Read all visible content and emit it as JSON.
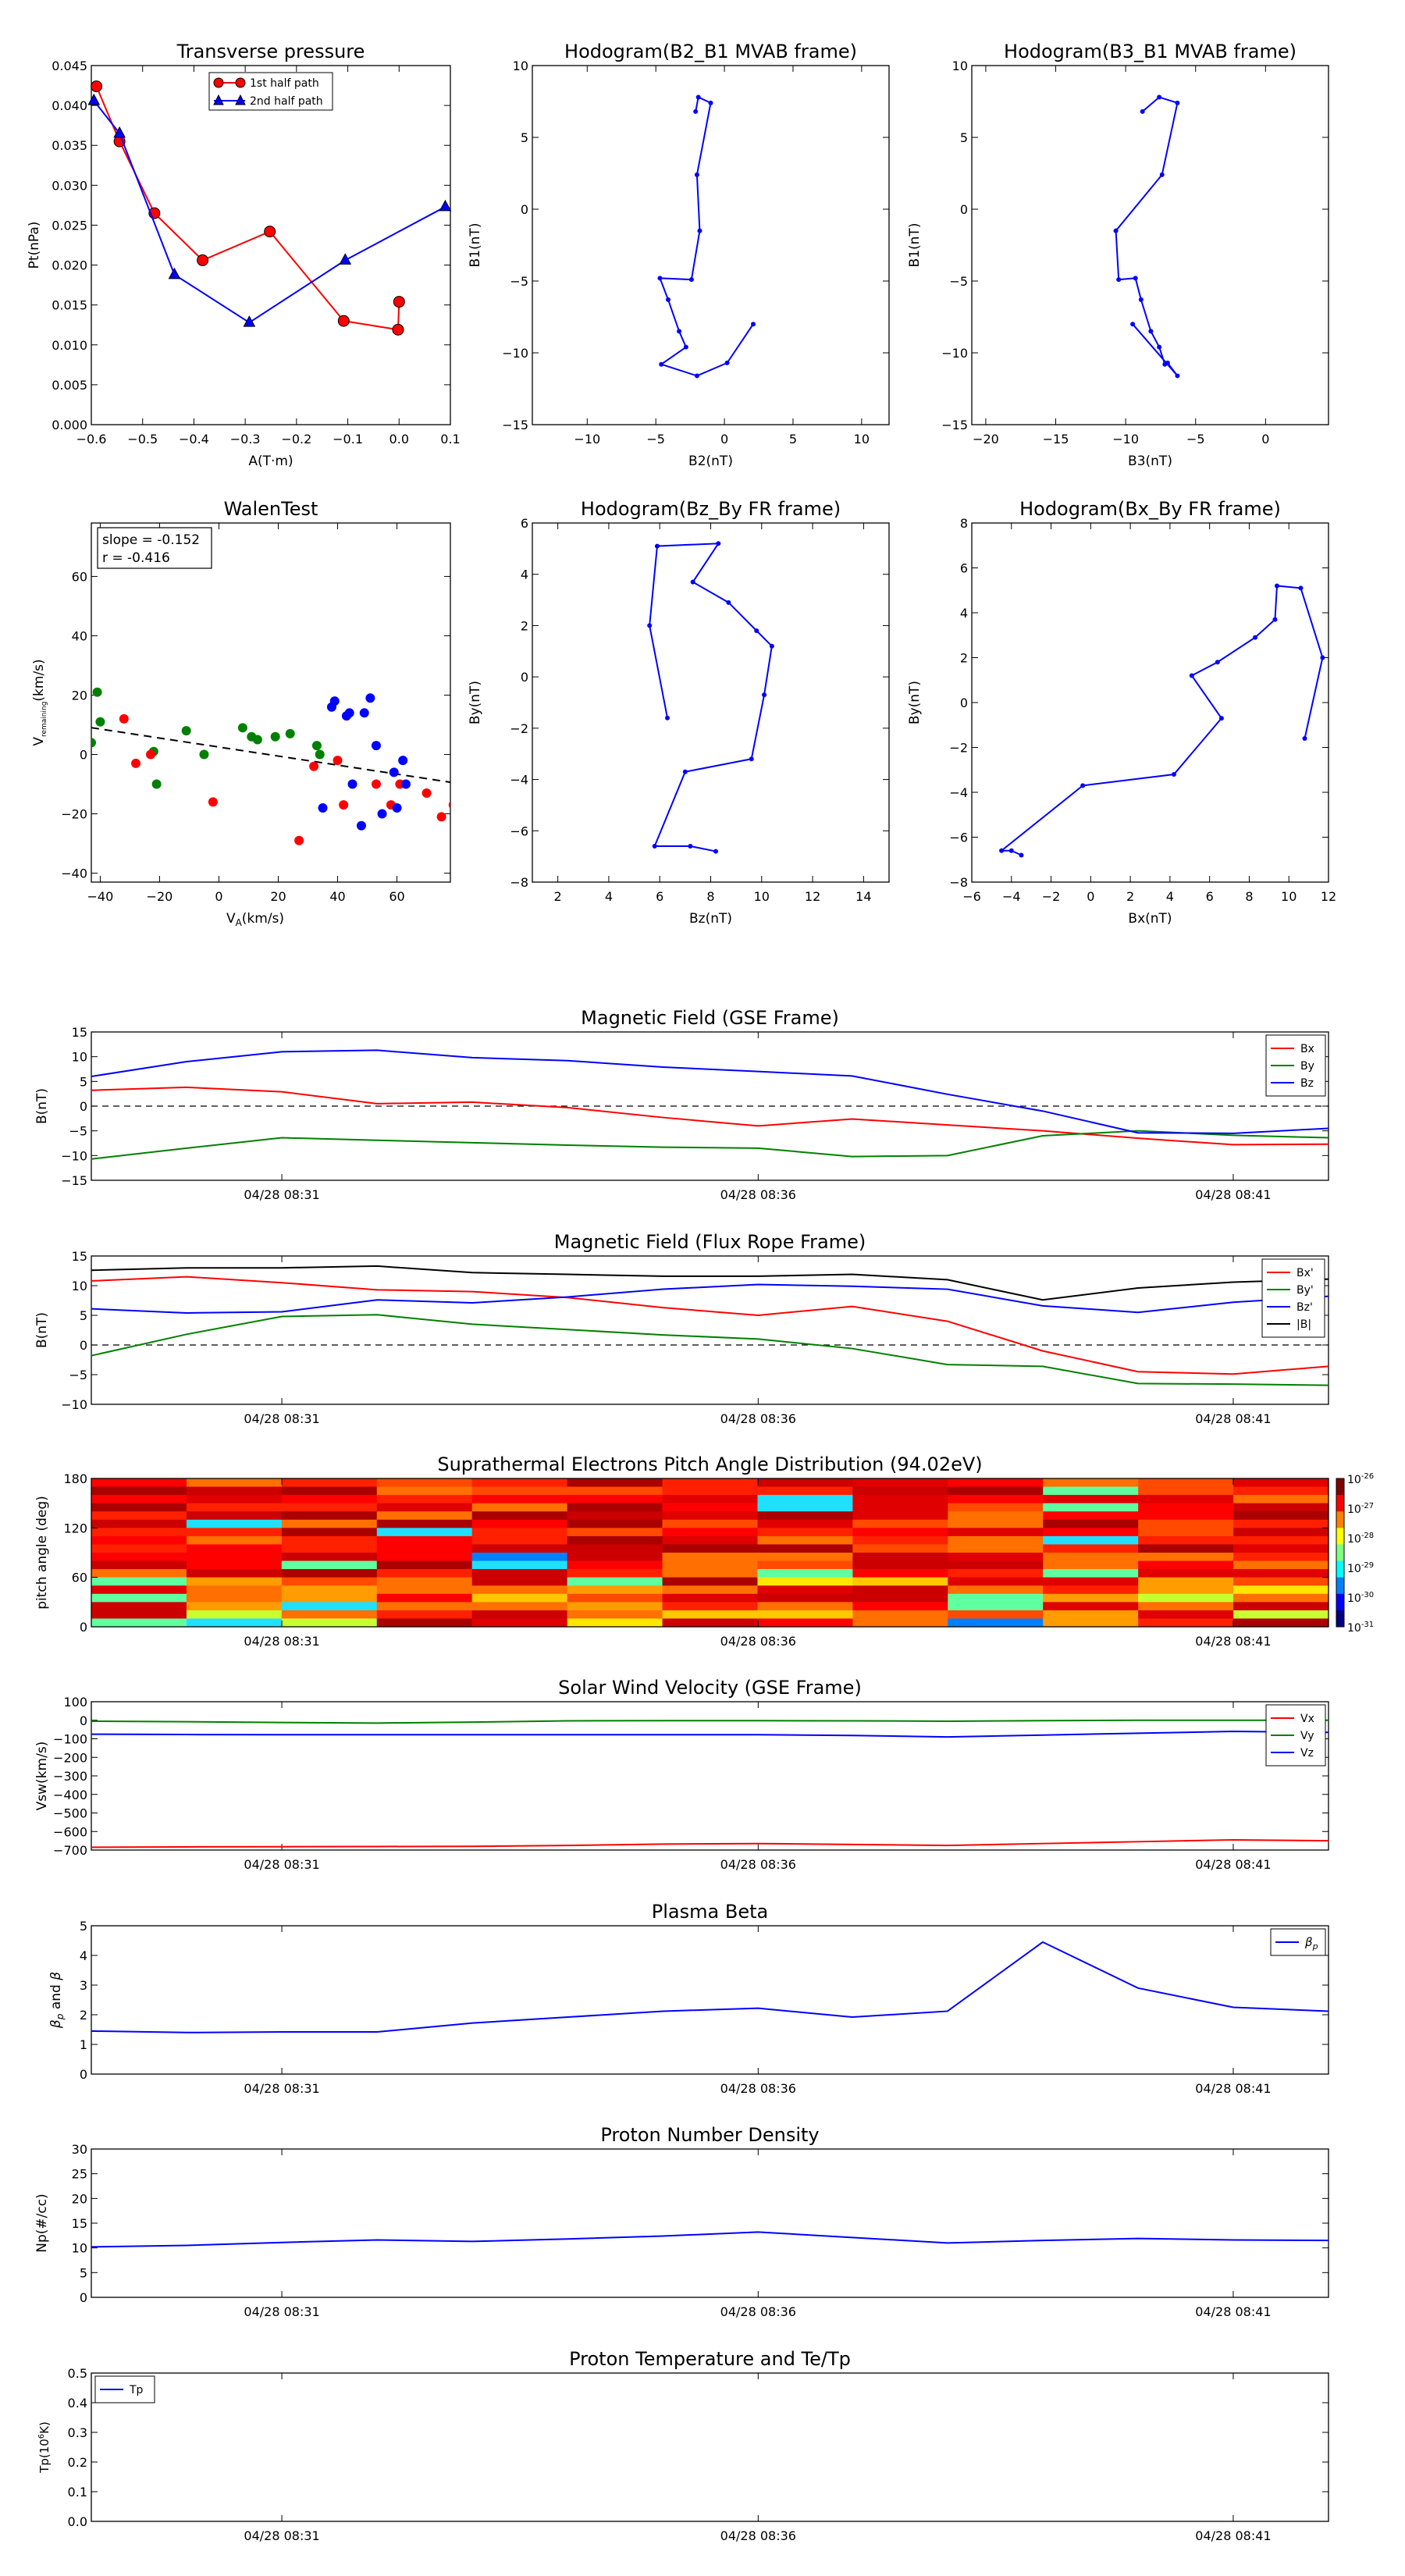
{
  "colors": {
    "red": "#ff0000",
    "green": "#008000",
    "blue": "#0000ff",
    "black": "#000000"
  },
  "panels": {
    "transverse_pressure": {
      "title": "Transverse pressure",
      "xlabel": "A(T·m)",
      "ylabel": "Pt(nPa)",
      "xlim": [
        -0.6,
        0.1
      ],
      "ylim": [
        0,
        0.045
      ],
      "xticks": [
        -0.6,
        -0.5,
        -0.4,
        -0.3,
        -0.2,
        -0.1,
        0.0,
        0.1
      ],
      "xtick_labels": [
        "−0.6",
        "−0.5",
        "−0.4",
        "−0.3",
        "−0.2",
        "−0.1",
        "0.0",
        "0.1"
      ],
      "yticks": [
        0,
        0.005,
        0.01,
        0.015,
        0.02,
        0.025,
        0.03,
        0.035,
        0.04,
        0.045
      ],
      "ytick_labels": [
        "0.000",
        "0.005",
        "0.010",
        "0.015",
        "0.020",
        "0.025",
        "0.030",
        "0.035",
        "0.040",
        "0.045"
      ],
      "series": [
        {
          "name": "1st half path",
          "color": "#ff0000",
          "marker": "circle",
          "x": [
            -0.59,
            -0.545,
            -0.477,
            -0.383,
            -0.252,
            -0.108,
            -0.002,
            0.0
          ],
          "y": [
            0.0424,
            0.0355,
            0.0265,
            0.0206,
            0.0242,
            0.013,
            0.0119,
            0.0154
          ]
        },
        {
          "name": "2nd half path",
          "color": "#0000ff",
          "marker": "triangle",
          "x": [
            -0.595,
            -0.545,
            -0.438,
            -0.292,
            -0.105,
            0.09
          ],
          "y": [
            0.0406,
            0.0365,
            0.0188,
            0.0128,
            0.0206,
            0.0273
          ]
        }
      ]
    },
    "hodogram_b2_b1": {
      "title": "Hodogram(B2_B1 MVAB frame)",
      "xlabel": "B2(nT)",
      "ylabel": "B1(nT)",
      "xlim": [
        -14,
        12
      ],
      "ylim": [
        -15,
        10
      ],
      "xticks": [
        -10,
        -5,
        0,
        5,
        10
      ],
      "xtick_labels": [
        "−10",
        "−5",
        "0",
        "5",
        "10"
      ],
      "yticks": [
        -15,
        -10,
        -5,
        0,
        5,
        10
      ],
      "ytick_labels": [
        "−15",
        "−10",
        "−5",
        "0",
        "5",
        "10"
      ],
      "color": "#0000ff",
      "x": [
        -2.1,
        -1.9,
        -1.0,
        -2.0,
        -1.8,
        -2.4,
        -4.7,
        -4.1,
        -3.3,
        -2.8,
        -4.6,
        -2.0,
        0.2,
        2.1
      ],
      "y": [
        6.8,
        7.8,
        7.4,
        2.4,
        -1.5,
        -4.9,
        -4.8,
        -6.3,
        -8.5,
        -9.6,
        -10.8,
        -11.6,
        -10.7,
        -8.0
      ]
    },
    "hodogram_b3_b1": {
      "title": "Hodogram(B3_B1 MVAB frame)",
      "xlabel": "B3(nT)",
      "ylabel": "B1(nT)",
      "xlim": [
        -21,
        4.5
      ],
      "ylim": [
        -15,
        10
      ],
      "xticks": [
        -20,
        -15,
        -10,
        -5,
        0
      ],
      "xtick_labels": [
        "−20",
        "−15",
        "−10",
        "−5",
        "0"
      ],
      "yticks": [
        -15,
        -10,
        -5,
        0,
        5,
        10
      ],
      "ytick_labels": [
        "−15",
        "−10",
        "−5",
        "0",
        "5",
        "10"
      ],
      "color": "#0000ff",
      "x": [
        -8.8,
        -7.6,
        -6.3,
        -7.4,
        -10.7,
        -10.5,
        -9.3,
        -8.9,
        -8.2,
        -7.6,
        -7.2,
        -7.0,
        -6.3,
        -9.5
      ],
      "y": [
        6.8,
        7.8,
        7.4,
        2.4,
        -1.5,
        -4.9,
        -4.8,
        -6.3,
        -8.5,
        -9.6,
        -10.8,
        -10.7,
        -11.6,
        -8.0
      ]
    },
    "walen_test": {
      "title": "WalenTest",
      "xlabel": "V_A(km/s)",
      "ylabel": "V_remaining(km/s)",
      "xlabel_main": "V",
      "xlabel_sub": "A",
      "xlabel_unit": "(km/s)",
      "ylabel_main": "V",
      "ylabel_sub": "remaining",
      "ylabel_unit": "(km/s)",
      "annotation": [
        "slope = -0.152",
        "r = -0.416"
      ],
      "xlim": [
        -43,
        78
      ],
      "ylim": [
        -43,
        78
      ],
      "xticks": [
        -40,
        -20,
        0,
        20,
        40,
        60
      ],
      "xtick_labels": [
        "−40",
        "−20",
        "0",
        "20",
        "40",
        "60"
      ],
      "yticks": [
        -40,
        -20,
        0,
        20,
        40,
        60
      ],
      "ytick_labels": [
        "−40",
        "−20",
        "0",
        "20",
        "40",
        "60"
      ],
      "fit_line": {
        "slope": -0.152,
        "intercept": 2.5
      },
      "points": [
        {
          "color": "#008000",
          "x": [
            -41,
            -40,
            -43,
            -22,
            -21,
            -11,
            -5,
            8,
            11,
            13,
            19,
            24,
            33,
            34
          ],
          "y": [
            21,
            11,
            4,
            1,
            -10,
            8,
            0,
            9,
            6,
            5,
            6,
            7,
            3,
            0
          ]
        },
        {
          "color": "#ff0000",
          "x": [
            -32,
            -28,
            -23,
            -2,
            27,
            32,
            40,
            42,
            53,
            58,
            61,
            70,
            75,
            79
          ],
          "y": [
            12,
            -3,
            0,
            -16,
            -29,
            -4,
            -2,
            -17,
            -10,
            -17,
            -10,
            -13,
            -21,
            -17
          ]
        },
        {
          "color": "#0000ff",
          "x": [
            35,
            38,
            39,
            43,
            44,
            45,
            48,
            49,
            51,
            53,
            55,
            59,
            60,
            62,
            63
          ],
          "y": [
            -18,
            16,
            18,
            13,
            14,
            -10,
            -24,
            14,
            19,
            3,
            -20,
            -6,
            -18,
            -2,
            -10
          ]
        }
      ]
    },
    "hodogram_bz_by": {
      "title": "Hodogram(Bz_By FR frame)",
      "xlabel": "Bz(nT)",
      "ylabel": "By(nT)",
      "xlim": [
        1,
        15
      ],
      "ylim": [
        -8,
        6
      ],
      "xticks": [
        2,
        4,
        6,
        8,
        10,
        12,
        14
      ],
      "xtick_labels": [
        "2",
        "4",
        "6",
        "8",
        "10",
        "12",
        "14"
      ],
      "yticks": [
        -8,
        -6,
        -4,
        -2,
        0,
        2,
        4,
        6
      ],
      "ytick_labels": [
        "−8",
        "−6",
        "−4",
        "−2",
        "0",
        "2",
        "4",
        "6"
      ],
      "color": "#0000ff",
      "x": [
        6.3,
        5.6,
        5.9,
        8.3,
        7.3,
        8.7,
        9.8,
        10.4,
        10.1,
        9.6,
        7.0,
        5.8,
        7.2,
        8.2
      ],
      "y": [
        -1.6,
        2.0,
        5.1,
        5.2,
        3.7,
        2.9,
        1.8,
        1.2,
        -0.7,
        -3.2,
        -3.7,
        -6.6,
        -6.6,
        -6.8
      ]
    },
    "hodogram_bx_by": {
      "title": "Hodogram(Bx_By FR frame)",
      "xlabel": "Bx(nT)",
      "ylabel": "By(nT)",
      "xlim": [
        -6,
        12
      ],
      "ylim": [
        -8,
        8
      ],
      "xticks": [
        -6,
        -4,
        -2,
        0,
        2,
        4,
        6,
        8,
        10,
        12
      ],
      "xtick_labels": [
        "−6",
        "−4",
        "−2",
        "0",
        "2",
        "4",
        "6",
        "8",
        "10",
        "12"
      ],
      "yticks": [
        -8,
        -6,
        -4,
        -2,
        0,
        2,
        4,
        6,
        8
      ],
      "ytick_labels": [
        "−8",
        "−6",
        "−4",
        "−2",
        "0",
        "2",
        "4",
        "6",
        "8"
      ],
      "color": "#0000ff",
      "x": [
        10.8,
        11.7,
        10.6,
        9.4,
        9.3,
        8.3,
        6.4,
        5.1,
        6.6,
        4.2,
        -0.4,
        -4.5,
        -4.0,
        -3.5
      ],
      "y": [
        -1.6,
        2.0,
        5.1,
        5.2,
        3.7,
        2.9,
        1.8,
        1.2,
        -0.7,
        -3.2,
        -3.7,
        -6.6,
        -6.6,
        -6.8
      ]
    }
  },
  "time_series": {
    "time_tick_labels": [
      "04/28 08:31",
      "04/28 08:36",
      "04/28 08:41"
    ],
    "time_tick_fracs": [
      0.154,
      0.539,
      0.923
    ],
    "x_fracs": [
      0,
      0.077,
      0.154,
      0.231,
      0.308,
      0.385,
      0.462,
      0.539,
      0.615,
      0.692,
      0.769,
      0.846,
      0.923,
      1.0
    ],
    "magnetic_gse": {
      "title": "Magnetic Field (GSE Frame)",
      "ylabel": "B(nT)",
      "ylim": [
        -15,
        15
      ],
      "yticks": [
        -15,
        -10,
        -5,
        0,
        5,
        10,
        15
      ],
      "ytick_labels": [
        "−15",
        "−10",
        "−5",
        "0",
        "5",
        "10",
        "15"
      ],
      "zero_line": true,
      "series": [
        {
          "name": "Bx",
          "color": "#ff0000",
          "values": [
            3.2,
            3.8,
            2.9,
            0.5,
            0.8,
            -0.3,
            -2.3,
            -4.0,
            -2.6,
            -3.8,
            -5.0,
            -6.5,
            -7.8,
            -7.7
          ]
        },
        {
          "name": "By",
          "color": "#008000",
          "values": [
            -10.7,
            -8.5,
            -6.4,
            -6.9,
            -7.4,
            -7.9,
            -8.3,
            -8.5,
            -10.2,
            -10.0,
            -6.0,
            -5.0,
            -5.9,
            -6.4
          ]
        },
        {
          "name": "Bz",
          "color": "#0000ff",
          "values": [
            6.0,
            9.0,
            11.0,
            11.3,
            9.8,
            9.2,
            7.9,
            7.0,
            6.1,
            2.4,
            -1.0,
            -5.4,
            -5.5,
            -4.5
          ]
        }
      ]
    },
    "magnetic_fr": {
      "title": "Magnetic Field (Flux Rope Frame)",
      "ylabel": "B(nT)",
      "ylim": [
        -10,
        15
      ],
      "yticks": [
        -10,
        -5,
        0,
        5,
        10,
        15
      ],
      "ytick_labels": [
        "−10",
        "−5",
        "0",
        "5",
        "10",
        "15"
      ],
      "zero_line": true,
      "series": [
        {
          "name": "Bx'",
          "color": "#ff0000",
          "values": [
            10.8,
            11.5,
            10.5,
            9.3,
            9.0,
            8.0,
            6.3,
            5.0,
            6.5,
            4.0,
            -1.0,
            -4.5,
            -4.9,
            -3.6
          ]
        },
        {
          "name": "By'",
          "color": "#008000",
          "values": [
            -1.8,
            1.8,
            4.8,
            5.1,
            3.5,
            2.6,
            1.7,
            1.0,
            -0.6,
            -3.3,
            -3.6,
            -6.5,
            -6.6,
            -6.8
          ]
        },
        {
          "name": "Bz'",
          "color": "#0000ff",
          "values": [
            6.1,
            5.4,
            5.6,
            7.6,
            7.1,
            8.1,
            9.4,
            10.2,
            9.9,
            9.4,
            6.6,
            5.5,
            7.2,
            8.2
          ]
        },
        {
          "name": "|B|",
          "color": "#000000",
          "values": [
            12.6,
            13.0,
            13.0,
            13.3,
            12.2,
            11.9,
            11.6,
            11.6,
            11.9,
            11.0,
            7.6,
            9.6,
            10.6,
            11.1
          ]
        }
      ]
    },
    "pitch_angle": {
      "title": "Suprathermal Electrons Pitch Angle Distribution (94.02eV)",
      "ylabel": "pitch angle (deg)",
      "ylim": [
        0,
        180
      ],
      "yticks": [
        0,
        60,
        120,
        180
      ],
      "ytick_labels": [
        "0",
        "60",
        "120",
        "180"
      ],
      "colorbar_labels": [
        "10^-26",
        "10^-27",
        "10^-28",
        "10^-29",
        "10^-30",
        "10^-31"
      ],
      "columns": 13,
      "rows": 18
    },
    "solar_wind": {
      "title": "Solar Wind Velocity (GSE Frame)",
      "ylabel": "Vsw(km/s)",
      "ylim": [
        -700,
        100
      ],
      "yticks": [
        -700,
        -600,
        -500,
        -400,
        -300,
        -200,
        -100,
        0,
        100
      ],
      "ytick_labels": [
        "−700",
        "−600",
        "−500",
        "−400",
        "−300",
        "−200",
        "−100",
        "0",
        "100"
      ],
      "series": [
        {
          "name": "Vx",
          "color": "#ff0000",
          "values": [
            -685,
            -683,
            -682,
            -681,
            -680,
            -675,
            -668,
            -665,
            -670,
            -675,
            -665,
            -655,
            -645,
            -650
          ]
        },
        {
          "name": "Vy",
          "color": "#008000",
          "values": [
            -5,
            -8,
            -12,
            -15,
            -10,
            -3,
            -2,
            -2,
            -3,
            -5,
            -2,
            0,
            0,
            0
          ]
        },
        {
          "name": "Vz",
          "color": "#0000ff",
          "values": [
            -75,
            -77,
            -78,
            -78,
            -78,
            -78,
            -78,
            -78,
            -82,
            -90,
            -80,
            -70,
            -60,
            -65
          ]
        }
      ]
    },
    "plasma_beta": {
      "title": "Plasma Beta",
      "ylabel": "β_p and β",
      "ylim": [
        0,
        5
      ],
      "yticks": [
        0,
        1,
        2,
        3,
        4,
        5
      ],
      "ytick_labels": [
        "0",
        "1",
        "2",
        "3",
        "4",
        "5"
      ],
      "series": [
        {
          "name": "β_p",
          "color": "#0000ff",
          "values": [
            1.45,
            1.4,
            1.42,
            1.42,
            1.72,
            1.92,
            2.12,
            2.22,
            1.92,
            2.12,
            4.45,
            2.9,
            2.25,
            2.12
          ]
        }
      ]
    },
    "proton_density": {
      "title": "Proton Number Density",
      "ylabel": "Np(#/cc)",
      "ylim": [
        0,
        30
      ],
      "yticks": [
        0,
        5,
        10,
        15,
        20,
        25,
        30
      ],
      "ytick_labels": [
        "0",
        "5",
        "10",
        "15",
        "20",
        "25",
        "30"
      ],
      "series": [
        {
          "name": "Np",
          "color": "#0000ff",
          "values": [
            10.2,
            10.5,
            11.1,
            11.6,
            11.3,
            11.8,
            12.4,
            13.2,
            12.1,
            11.0,
            11.5,
            11.9,
            11.6,
            11.5
          ]
        }
      ]
    },
    "proton_temperature": {
      "title": "Proton Temperature and Te/Tp",
      "ylabel": "Tp(10^6K)",
      "ylim": [
        0,
        0.5
      ],
      "yticks": [
        0,
        0.1,
        0.2,
        0.3,
        0.4,
        0.5
      ],
      "ytick_labels": [
        "0.0",
        "0.1",
        "0.2",
        "0.3",
        "0.4",
        "0.5"
      ],
      "series": [
        {
          "name": "Tp",
          "color": "#0000ff",
          "values": []
        }
      ]
    }
  },
  "chart_data": [
    {
      "type": "scatter",
      "title": "Transverse pressure",
      "xlabel": "A(T·m)",
      "ylabel": "Pt(nPa)",
      "xlim": [
        -0.6,
        0.1
      ],
      "ylim": [
        0,
        0.045
      ],
      "series": [
        {
          "name": "1st half path",
          "x": [
            -0.59,
            -0.545,
            -0.477,
            -0.383,
            -0.252,
            -0.108,
            -0.002,
            0.0
          ],
          "y": [
            0.0424,
            0.0355,
            0.0265,
            0.0206,
            0.0242,
            0.013,
            0.0119,
            0.0154
          ]
        },
        {
          "name": "2nd half path",
          "x": [
            -0.595,
            -0.545,
            -0.438,
            -0.292,
            -0.105,
            0.09
          ],
          "y": [
            0.0406,
            0.0365,
            0.0188,
            0.0128,
            0.0206,
            0.0273
          ]
        }
      ]
    },
    {
      "type": "line",
      "title": "Hodogram(B2_B1 MVAB frame)",
      "xlabel": "B2(nT)",
      "ylabel": "B1(nT)"
    },
    {
      "type": "line",
      "title": "Hodogram(B3_B1 MVAB frame)",
      "xlabel": "B3(nT)",
      "ylabel": "B1(nT)"
    },
    {
      "type": "scatter",
      "title": "WalenTest",
      "annotation": "slope = -0.152, r = -0.416"
    },
    {
      "type": "line",
      "title": "Hodogram(Bz_By FR frame)",
      "xlabel": "Bz(nT)",
      "ylabel": "By(nT)"
    },
    {
      "type": "line",
      "title": "Hodogram(Bx_By FR frame)",
      "xlabel": "Bx(nT)",
      "ylabel": "By(nT)"
    },
    {
      "type": "line",
      "title": "Magnetic Field (GSE Frame)",
      "x": [
        "04/28 08:31",
        "04/28 08:36",
        "04/28 08:41"
      ],
      "ylim": [
        -15,
        15
      ]
    },
    {
      "type": "line",
      "title": "Magnetic Field (Flux Rope Frame)",
      "ylim": [
        -10,
        15
      ]
    },
    {
      "type": "heatmap",
      "title": "Suprathermal Electrons Pitch Angle Distribution (94.02eV)",
      "ylim": [
        0,
        180
      ]
    },
    {
      "type": "line",
      "title": "Solar Wind Velocity (GSE Frame)",
      "ylim": [
        -700,
        100
      ]
    },
    {
      "type": "line",
      "title": "Plasma Beta",
      "ylim": [
        0,
        5
      ]
    },
    {
      "type": "line",
      "title": "Proton Number Density",
      "ylim": [
        0,
        30
      ]
    },
    {
      "type": "line",
      "title": "Proton Temperature and Te/Tp",
      "ylim": [
        0,
        0.5
      ]
    }
  ]
}
